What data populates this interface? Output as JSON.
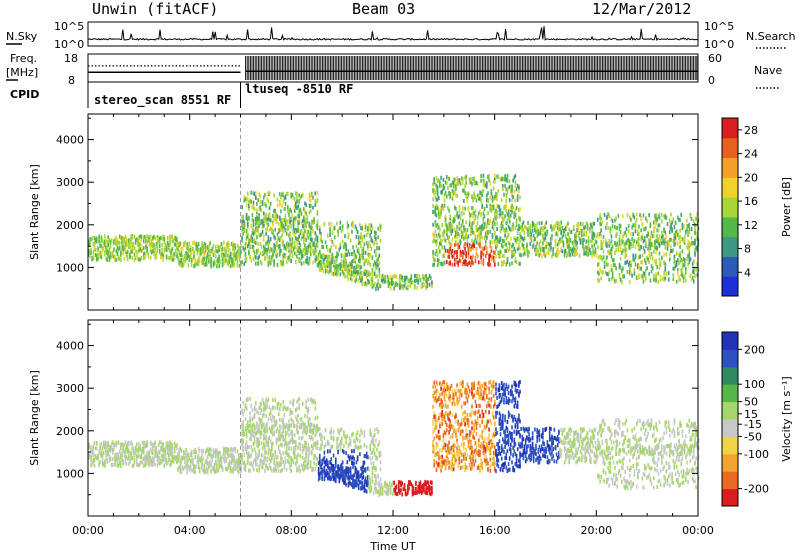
{
  "header": {
    "station": "Unwin (fitACF)",
    "beam": "Beam 03",
    "date": "12/Mar/2012"
  },
  "side_labels": {
    "nsky": "N.Sky",
    "freq_line1": "Freq.",
    "freq_line2": "[MHz]",
    "cpid": "CPID",
    "nsearch": "N.Search",
    "nave": "Nave"
  },
  "mode_labels": {
    "mode1": "stereo_scan 8551 RF",
    "mode2": "ltuseq -8510 RF"
  },
  "colors": {
    "power_scale": [
      "#1f2fd8",
      "#2c5ab8",
      "#3c9a82",
      "#57b84a",
      "#a8d63a",
      "#f0d22e",
      "#f2a12a",
      "#e8601f",
      "#d81e1e"
    ],
    "velocity_scale": [
      "#2233b8",
      "#2b52c0",
      "#2f8a60",
      "#54b746",
      "#a5d76a",
      "#c8c8c8",
      "#f2d246",
      "#f2a42e",
      "#ea6a22",
      "#d81e1e"
    ]
  },
  "chart_data": [
    {
      "type": "line",
      "name": "noise-panel",
      "ylabel_left": "N.Sky",
      "ylabel_right": "N.Search",
      "yticks": [
        "10^5",
        "10^0"
      ],
      "ylim_log": [
        0,
        5
      ]
    },
    {
      "type": "line",
      "name": "frequency-panel",
      "ylabel_left": "Freq. [MHz]",
      "ylabel_right": "Nave",
      "yticks_left": [
        8,
        18
      ],
      "yticks_right": [
        0,
        60
      ],
      "ylim_left": [
        6,
        19
      ],
      "ylim_right": [
        0,
        60
      ],
      "segments": [
        {
          "x": [
            0,
            6
          ],
          "freq": 10.5,
          "freq_dotted": 13.5
        },
        {
          "x": [
            6.2,
            24
          ],
          "freq": 11,
          "nave_range": [
            0,
            60
          ]
        }
      ]
    },
    {
      "type": "heatmap",
      "name": "power-panel",
      "ylabel": "Slant Range [km]",
      "xlabel": "",
      "xlim": [
        0,
        24
      ],
      "ylim": [
        0,
        4600
      ],
      "yticks": [
        1000,
        2000,
        3000,
        4000
      ],
      "colorbar": {
        "label": "Power [dB]",
        "ticks": [
          4,
          8,
          12,
          16,
          20,
          24,
          28
        ],
        "range": [
          0,
          30
        ]
      },
      "mode_change_hour": 6
    },
    {
      "type": "heatmap",
      "name": "velocity-panel",
      "ylabel": "Slant Range [km]",
      "xlabel": "Time UT",
      "xlim": [
        0,
        24
      ],
      "ylim": [
        0,
        4600
      ],
      "yticks": [
        1000,
        2000,
        3000,
        4000
      ],
      "xticks": [
        "00:00",
        "04:00",
        "08:00",
        "12:00",
        "16:00",
        "20:00",
        "00:00"
      ],
      "colorbar": {
        "label": "Velocity [m s⁻¹]",
        "ticks": [
          200,
          100,
          50,
          15,
          -15,
          -50,
          -100,
          -200
        ],
        "range": [
          -250,
          250
        ]
      },
      "mode_change_hour": 6
    }
  ]
}
